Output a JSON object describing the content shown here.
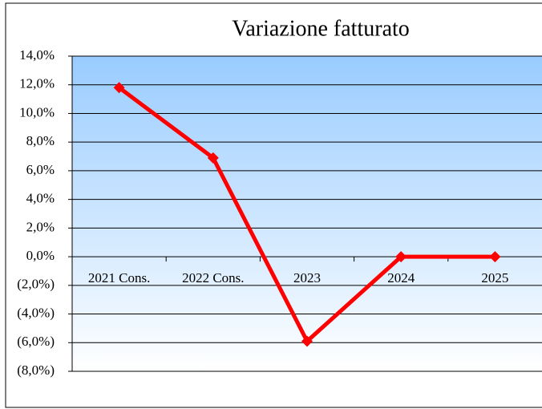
{
  "chart_data": {
    "type": "line",
    "title": "Variazione fatturato",
    "categories": [
      "2021 Cons.",
      "2022 Cons.",
      "2023",
      "2024",
      "2025"
    ],
    "values": [
      11.8,
      6.9,
      -5.9,
      0,
      0
    ],
    "color": "#ff0000",
    "ylim": [
      -8,
      14
    ],
    "yticks": [
      {
        "value": -8,
        "label": "(8,0%)"
      },
      {
        "value": -6,
        "label": "(6,0%)"
      },
      {
        "value": -4,
        "label": "(4,0%)"
      },
      {
        "value": -2,
        "label": "(2,0%)"
      },
      {
        "value": 0,
        "label": "0,0%"
      },
      {
        "value": 2,
        "label": "2,0%"
      },
      {
        "value": 4,
        "label": "4,0%"
      },
      {
        "value": 6,
        "label": "6,0%"
      },
      {
        "value": 8,
        "label": "8,0%"
      },
      {
        "value": 10,
        "label": "10,0%"
      },
      {
        "value": 12,
        "label": "12,0%"
      },
      {
        "value": 14,
        "label": "14,0%"
      }
    ],
    "grid": true
  }
}
